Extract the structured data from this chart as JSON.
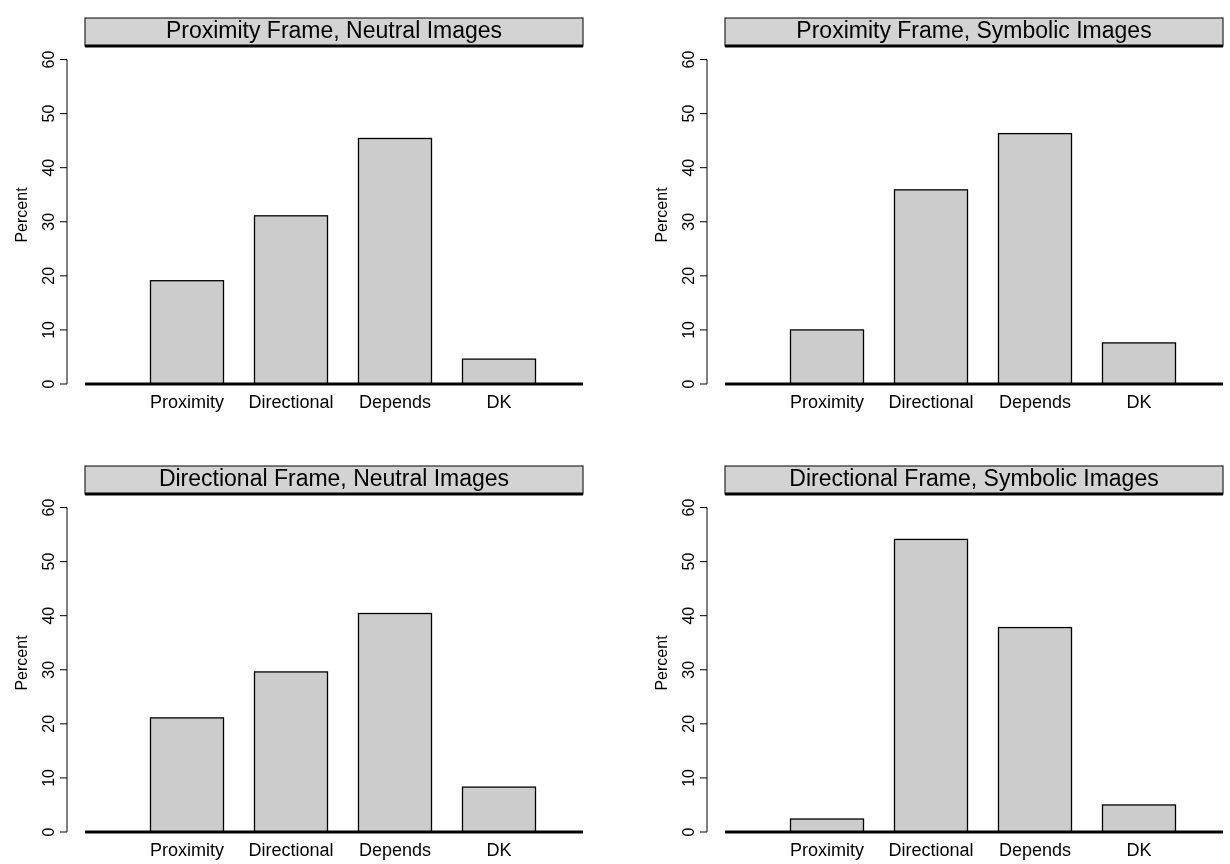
{
  "chart_data": [
    {
      "type": "bar",
      "title": "Proximity Frame, Neutral Images",
      "ylabel": "Percent",
      "categories": [
        "Proximity",
        "Directional",
        "Depends",
        "DK"
      ],
      "values": [
        19.1,
        31.1,
        45.4,
        4.6
      ],
      "color": "#cccccc",
      "ylim": [
        0,
        62.5
      ],
      "yticks": [
        0,
        10,
        20,
        30,
        40,
        50,
        60
      ]
    },
    {
      "type": "bar",
      "title": "Proximity Frame, Symbolic Images",
      "ylabel": "Percent",
      "categories": [
        "Proximity",
        "Directional",
        "Depends",
        "DK"
      ],
      "values": [
        10.0,
        35.9,
        46.3,
        7.6
      ],
      "color": "#cccccc",
      "ylim": [
        0,
        62.5
      ],
      "yticks": [
        0,
        10,
        20,
        30,
        40,
        50,
        60
      ]
    },
    {
      "type": "bar",
      "title": "Directional Frame, Neutral Images",
      "ylabel": "Percent",
      "categories": [
        "Proximity",
        "Directional",
        "Depends",
        "DK"
      ],
      "values": [
        21.1,
        29.6,
        40.4,
        8.3
      ],
      "color": "#cccccc",
      "ylim": [
        0,
        62.5
      ],
      "yticks": [
        0,
        10,
        20,
        30,
        40,
        50,
        60
      ]
    },
    {
      "type": "bar",
      "title": "Directional Frame, Symbolic Images",
      "ylabel": "Percent",
      "categories": [
        "Proximity",
        "Directional",
        "Depends",
        "DK"
      ],
      "values": [
        2.4,
        54.1,
        37.8,
        5.0
      ],
      "color": "#cccccc",
      "ylim": [
        0,
        62.5
      ],
      "yticks": [
        0,
        10,
        20,
        30,
        40,
        50,
        60
      ]
    }
  ]
}
